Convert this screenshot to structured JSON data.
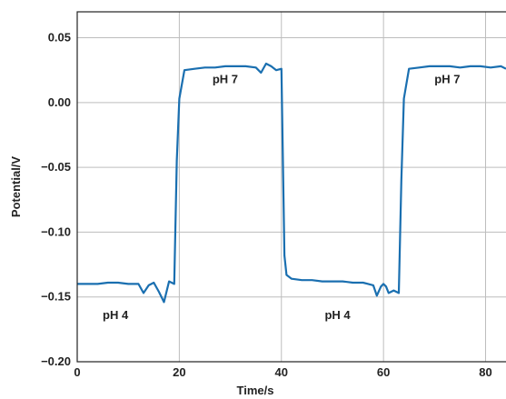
{
  "chart_data": {
    "type": "line",
    "title": "",
    "xlabel": "Time/s",
    "ylabel": "Potential/V",
    "xlim": [
      0,
      84
    ],
    "ylim": [
      -0.2,
      0.07
    ],
    "grid": true,
    "x_ticks": [
      0,
      20,
      40,
      60,
      80
    ],
    "x_tick_labels": [
      "0",
      "20",
      "40",
      "60",
      "80"
    ],
    "y_ticks": [
      0.05,
      0.0,
      -0.05,
      -0.1,
      -0.15,
      -0.2
    ],
    "y_tick_labels": [
      "0.05",
      "0.00",
      "−0.05",
      "−0.10",
      "−0.15",
      "−0.20"
    ],
    "line_color": "#1a6fb0",
    "annotations": [
      {
        "text": "pH 4",
        "x": 7.5,
        "y": -0.167
      },
      {
        "text": "pH 7",
        "x": 29,
        "y": 0.015
      },
      {
        "text": "pH 4",
        "x": 51,
        "y": -0.167
      },
      {
        "text": "pH 7",
        "x": 72.5,
        "y": 0.015
      }
    ],
    "series": [
      {
        "x": [
          0,
          2,
          4,
          6,
          8,
          10,
          12,
          13,
          14,
          15,
          16,
          17,
          18,
          19,
          19.5,
          20,
          21,
          23,
          25,
          27,
          29,
          31,
          33,
          35,
          36,
          37,
          38,
          39,
          40,
          40.6,
          41,
          42,
          44,
          46,
          48,
          50,
          52,
          54,
          56,
          57,
          58,
          58.7,
          59.5,
          60,
          60.5,
          61,
          62,
          63,
          63.5,
          64,
          65,
          67,
          69,
          71,
          73,
          75,
          77,
          79,
          81,
          83,
          84
        ],
        "y": [
          -0.14,
          -0.14,
          -0.14,
          -0.139,
          -0.139,
          -0.14,
          -0.14,
          -0.147,
          -0.141,
          -0.139,
          -0.146,
          -0.154,
          -0.138,
          -0.14,
          -0.045,
          0.003,
          0.025,
          0.026,
          0.027,
          0.027,
          0.028,
          0.028,
          0.028,
          0.027,
          0.023,
          0.03,
          0.028,
          0.025,
          0.026,
          -0.118,
          -0.133,
          -0.136,
          -0.137,
          -0.137,
          -0.138,
          -0.138,
          -0.138,
          -0.139,
          -0.139,
          -0.14,
          -0.141,
          -0.149,
          -0.142,
          -0.14,
          -0.142,
          -0.147,
          -0.145,
          -0.147,
          -0.06,
          0.003,
          0.026,
          0.027,
          0.028,
          0.028,
          0.028,
          0.027,
          0.028,
          0.028,
          0.027,
          0.028,
          0.026
        ]
      }
    ]
  }
}
